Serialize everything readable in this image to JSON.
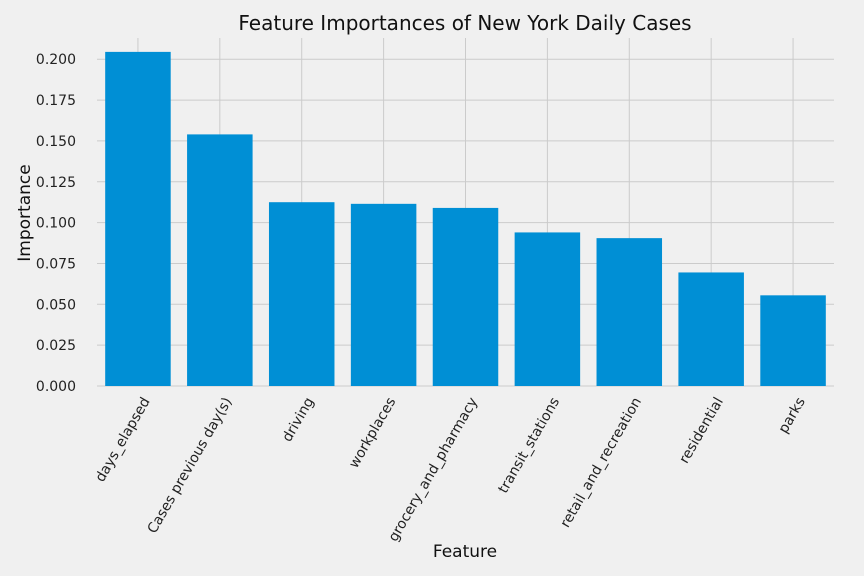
{
  "chart_data": {
    "type": "bar",
    "title": "Feature Importances of New York Daily Cases",
    "xlabel": "Feature",
    "ylabel": "Importance",
    "categories": [
      "days_elapsed",
      "Cases previous day(s)",
      "driving",
      "workplaces",
      "grocery_and_pharmacy",
      "transit_stations",
      "retail_and_recreation",
      "residential",
      "parks"
    ],
    "values": [
      0.2045,
      0.154,
      0.1125,
      0.1115,
      0.109,
      0.094,
      0.0905,
      0.0695,
      0.0555
    ],
    "ylim": [
      0,
      0.213
    ],
    "yticks": [
      "0.000",
      "0.025",
      "0.050",
      "0.075",
      "0.100",
      "0.125",
      "0.150",
      "0.175",
      "0.200"
    ],
    "bar_color": "#008fd5",
    "grid": true,
    "legend": "none"
  }
}
